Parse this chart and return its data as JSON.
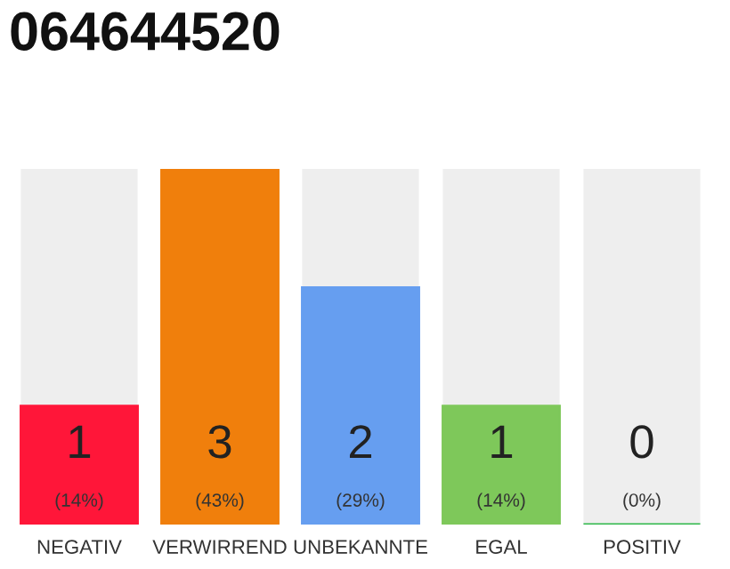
{
  "chart_data": {
    "type": "bar",
    "title": "064644520",
    "categories": [
      "NEGATIV",
      "VERWIRREND",
      "UNBEKANNTE",
      "EGAL",
      "POSITIV"
    ],
    "values": [
      1,
      3,
      2,
      1,
      0
    ],
    "colors": [
      "#ff1639",
      "#f07f0c",
      "#669ef0",
      "#7ec85a",
      "#2eb84a"
    ],
    "value_labels": [
      "1\n(14%)",
      "3\n(43%)",
      "2\n(29%)",
      "1\n(14%)",
      "0\n(0%)"
    ],
    "grid": false,
    "legend": false
  }
}
